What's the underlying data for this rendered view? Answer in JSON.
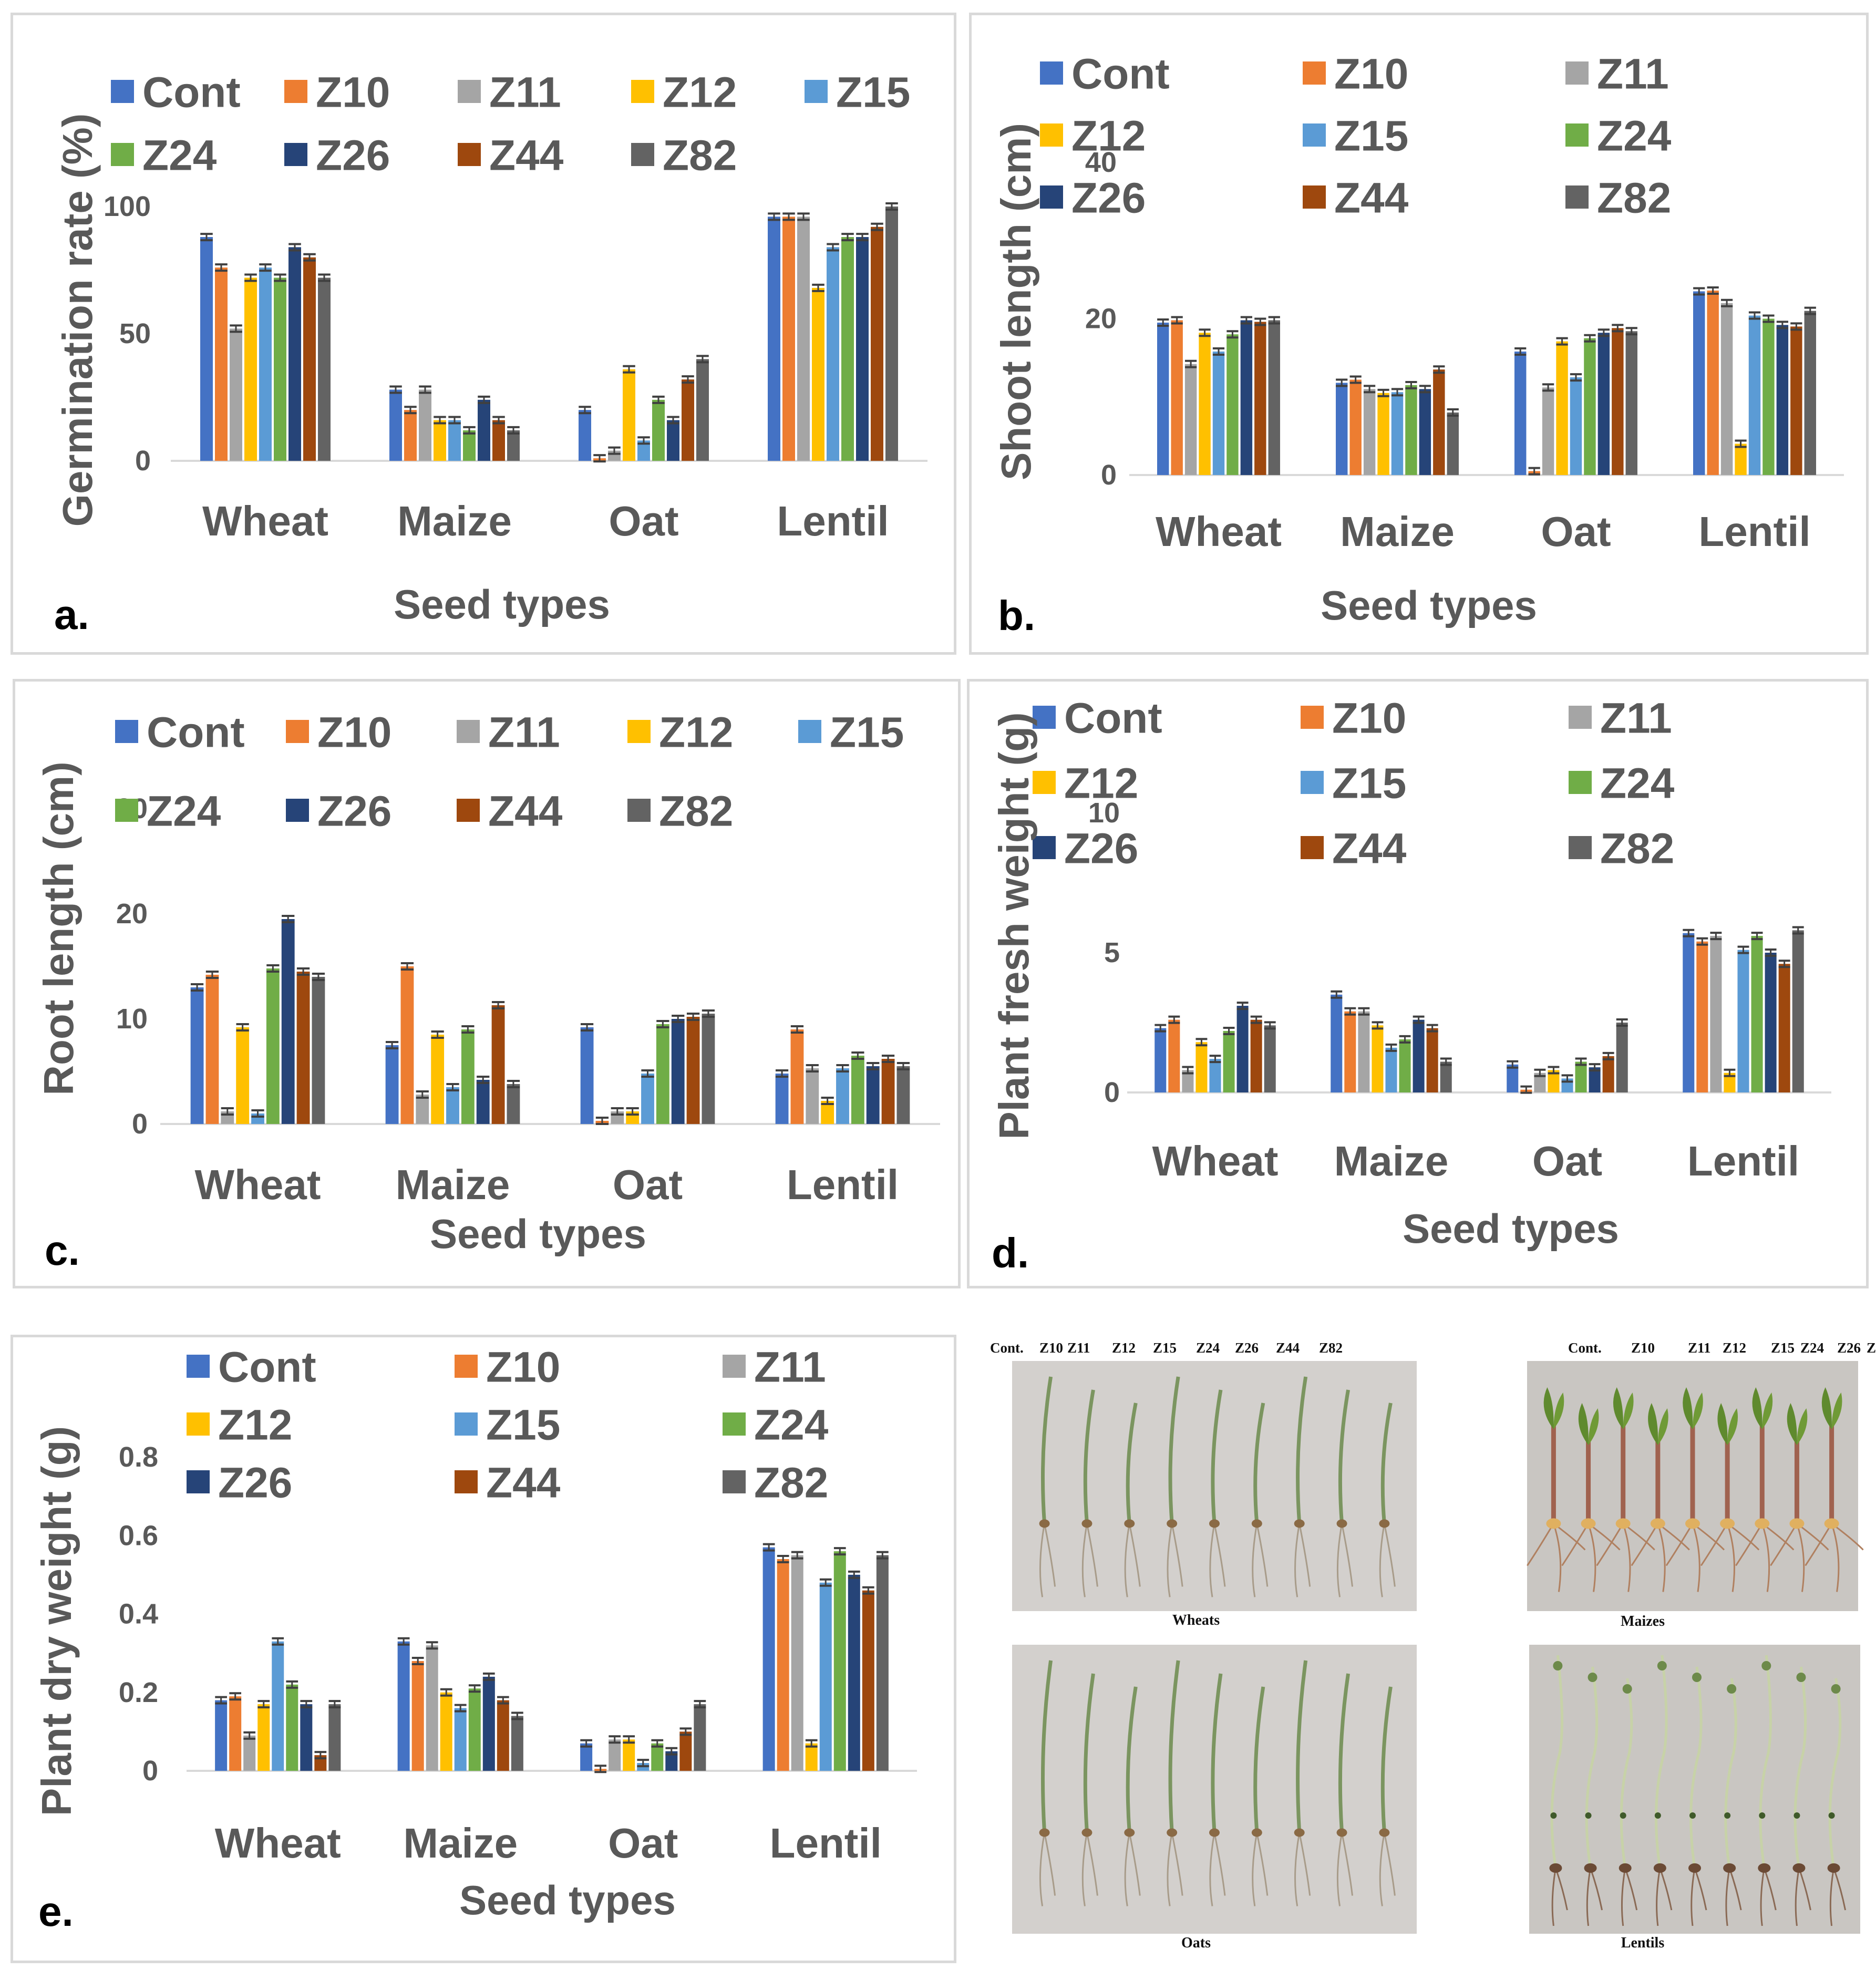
{
  "legend_series": [
    "Cont",
    "Z10",
    "Z11",
    "Z12",
    "Z15",
    "Z24",
    "Z26",
    "Z44",
    "Z82"
  ],
  "colors": [
    "#4472c4",
    "#ed7d31",
    "#a5a5a5",
    "#ffc000",
    "#5b9bd5",
    "#70ad47",
    "#264478",
    "#9e480e",
    "#636363"
  ],
  "chart_data": [
    {
      "type": "bar",
      "panel_label": "a.",
      "categories": [
        "Wheat",
        "Maize",
        "Oat",
        "Lentil"
      ],
      "xlabel": "Seed types",
      "ylabel": "Germination rate (%)",
      "ylim": [
        0,
        100
      ],
      "yticks": [
        "0",
        "50",
        "100"
      ],
      "series": [
        {
          "name": "Cont",
          "values": [
            88,
            28,
            20,
            96
          ]
        },
        {
          "name": "Z10",
          "values": [
            76,
            20,
            1,
            96
          ]
        },
        {
          "name": "Z11",
          "values": [
            52,
            28,
            4,
            96
          ]
        },
        {
          "name": "Z12",
          "values": [
            72,
            16,
            36,
            68
          ]
        },
        {
          "name": "Z15",
          "values": [
            76,
            16,
            8,
            84
          ]
        },
        {
          "name": "Z24",
          "values": [
            72,
            12,
            24,
            88
          ]
        },
        {
          "name": "Z26",
          "values": [
            84,
            24,
            16,
            88
          ]
        },
        {
          "name": "Z44",
          "values": [
            80,
            16,
            32,
            92
          ]
        },
        {
          "name": "Z82",
          "values": [
            72,
            12,
            40,
            100
          ]
        }
      ]
    },
    {
      "type": "bar",
      "panel_label": "b.",
      "categories": [
        "Wheat",
        "Maize",
        "Oat",
        "Lentil"
      ],
      "xlabel": "Seed types",
      "ylabel": "Shoot length (cm)",
      "ylim": [
        0,
        40
      ],
      "yticks": [
        "0",
        "20",
        "40"
      ],
      "series": [
        {
          "name": "Cont",
          "values": [
            19.5,
            11.8,
            15.8,
            23.5
          ]
        },
        {
          "name": "Z10",
          "values": [
            19.8,
            12.2,
            0.5,
            23.6
          ]
        },
        {
          "name": "Z11",
          "values": [
            14.2,
            11,
            11.2,
            22
          ]
        },
        {
          "name": "Z12",
          "values": [
            18.2,
            10.5,
            17.1,
            4
          ]
        },
        {
          "name": "Z15",
          "values": [
            15.8,
            10.6,
            12.5,
            20.4
          ]
        },
        {
          "name": "Z24",
          "values": [
            18,
            11.5,
            17.5,
            20
          ]
        },
        {
          "name": "Z26",
          "values": [
            19.8,
            11,
            18.2,
            19.2
          ]
        },
        {
          "name": "Z44",
          "values": [
            19.6,
            13.5,
            18.8,
            19
          ]
        },
        {
          "name": "Z82",
          "values": [
            19.8,
            8,
            18.4,
            21
          ]
        }
      ]
    },
    {
      "type": "bar",
      "panel_label": "c.",
      "categories": [
        "Wheat",
        "Maize",
        "Oat",
        "Lentil"
      ],
      "xlabel": "Seed types",
      "ylabel": "Root length (cm)",
      "ylim": [
        0,
        30
      ],
      "yticks": [
        "0",
        "10",
        "20",
        "30"
      ],
      "series": [
        {
          "name": "Cont",
          "values": [
            13,
            7.5,
            9.2,
            4.8
          ]
        },
        {
          "name": "Z10",
          "values": [
            14.2,
            15,
            0.3,
            9
          ]
        },
        {
          "name": "Z11",
          "values": [
            1.2,
            2.8,
            1.2,
            5.3
          ]
        },
        {
          "name": "Z12",
          "values": [
            9.2,
            8.5,
            1.2,
            2.2
          ]
        },
        {
          "name": "Z15",
          "values": [
            1,
            3.5,
            4.8,
            5.3
          ]
        },
        {
          "name": "Z24",
          "values": [
            14.8,
            9,
            9.5,
            6.5
          ]
        },
        {
          "name": "Z26",
          "values": [
            19.5,
            4.2,
            10,
            5.5
          ]
        },
        {
          "name": "Z44",
          "values": [
            14.5,
            11.3,
            10.2,
            6.2
          ]
        },
        {
          "name": "Z82",
          "values": [
            14,
            3.8,
            10.5,
            5.5
          ]
        }
      ]
    },
    {
      "type": "bar",
      "panel_label": "d.",
      "categories": [
        "Wheat",
        "Maize",
        "Oat",
        "Lentil"
      ],
      "xlabel": "Seed types",
      "ylabel": "Plant fresh weight (g)",
      "ylim": [
        0,
        10
      ],
      "yticks": [
        "0",
        "5",
        "10"
      ],
      "series": [
        {
          "name": "Cont",
          "values": [
            2.3,
            3.5,
            1,
            5.7
          ]
        },
        {
          "name": "Z10",
          "values": [
            2.6,
            2.9,
            0.1,
            5.4
          ]
        },
        {
          "name": "Z11",
          "values": [
            0.8,
            2.9,
            0.7,
            5.6
          ]
        },
        {
          "name": "Z12",
          "values": [
            1.8,
            2.4,
            0.8,
            0.7
          ]
        },
        {
          "name": "Z15",
          "values": [
            1.2,
            1.6,
            0.5,
            5.1
          ]
        },
        {
          "name": "Z24",
          "values": [
            2.2,
            1.9,
            1.1,
            5.6
          ]
        },
        {
          "name": "Z26",
          "values": [
            3.1,
            2.6,
            0.9,
            5
          ]
        },
        {
          "name": "Z44",
          "values": [
            2.6,
            2.3,
            1.3,
            4.6
          ]
        },
        {
          "name": "Z82",
          "values": [
            2.4,
            1.1,
            2.5,
            5.8
          ]
        }
      ]
    },
    {
      "type": "bar",
      "panel_label": "e.",
      "categories": [
        "Wheat",
        "Maize",
        "Oat",
        "Lentil"
      ],
      "xlabel": "Seed types",
      "ylabel": "Plant dry weight (g)",
      "ylim": [
        0,
        0.8
      ],
      "yticks": [
        "0",
        "0.2",
        "0.4",
        "0.6",
        "0.8"
      ],
      "series": [
        {
          "name": "Cont",
          "values": [
            0.18,
            0.33,
            0.07,
            0.57
          ]
        },
        {
          "name": "Z10",
          "values": [
            0.19,
            0.28,
            0.005,
            0.54
          ]
        },
        {
          "name": "Z11",
          "values": [
            0.09,
            0.32,
            0.08,
            0.55
          ]
        },
        {
          "name": "Z12",
          "values": [
            0.17,
            0.2,
            0.08,
            0.07
          ]
        },
        {
          "name": "Z15",
          "values": [
            0.33,
            0.16,
            0.02,
            0.48
          ]
        },
        {
          "name": "Z24",
          "values": [
            0.22,
            0.21,
            0.07,
            0.56
          ]
        },
        {
          "name": "Z26",
          "values": [
            0.17,
            0.24,
            0.05,
            0.5
          ]
        },
        {
          "name": "Z44",
          "values": [
            0.04,
            0.18,
            0.1,
            0.46
          ]
        },
        {
          "name": "Z82",
          "values": [
            0.17,
            0.14,
            0.17,
            0.55
          ]
        }
      ]
    }
  ],
  "photos": {
    "seed_labels": [
      "Cont.",
      "Z10",
      "Z11",
      "Z12",
      "Z15",
      "Z24",
      "Z26",
      "Z44",
      "Z82"
    ],
    "panels": [
      "Wheats",
      "Maizes",
      "Oats",
      "Lentils"
    ]
  }
}
